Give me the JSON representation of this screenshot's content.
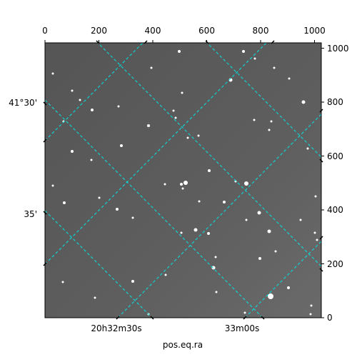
{
  "image_panel": {
    "background_color": "#5c5c5c",
    "frame_color": "#000000",
    "grid_color": "#00e5e5"
  },
  "axes": {
    "top_pixel_ticks": [
      "0",
      "200",
      "400",
      "600",
      "800",
      "1000"
    ],
    "right_pixel_ticks": [
      "0",
      "200",
      "400",
      "600",
      "800",
      "1000"
    ],
    "left_dec_labels": [
      "41°30'",
      "35'"
    ],
    "bottom_ra_labels": [
      "20h32m30s",
      "33m00s"
    ],
    "bottom_label": "pos.eq.ra"
  }
}
